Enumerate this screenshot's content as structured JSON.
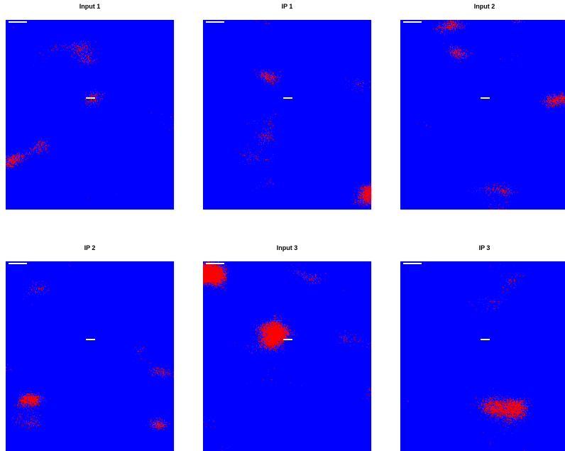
{
  "panels": [
    {
      "title": "Input 1"
    },
    {
      "title": "IP 1"
    },
    {
      "title": "Input 2"
    },
    {
      "title": "IP 2"
    },
    {
      "title": "Input 3"
    },
    {
      "title": "IP 3"
    }
  ]
}
